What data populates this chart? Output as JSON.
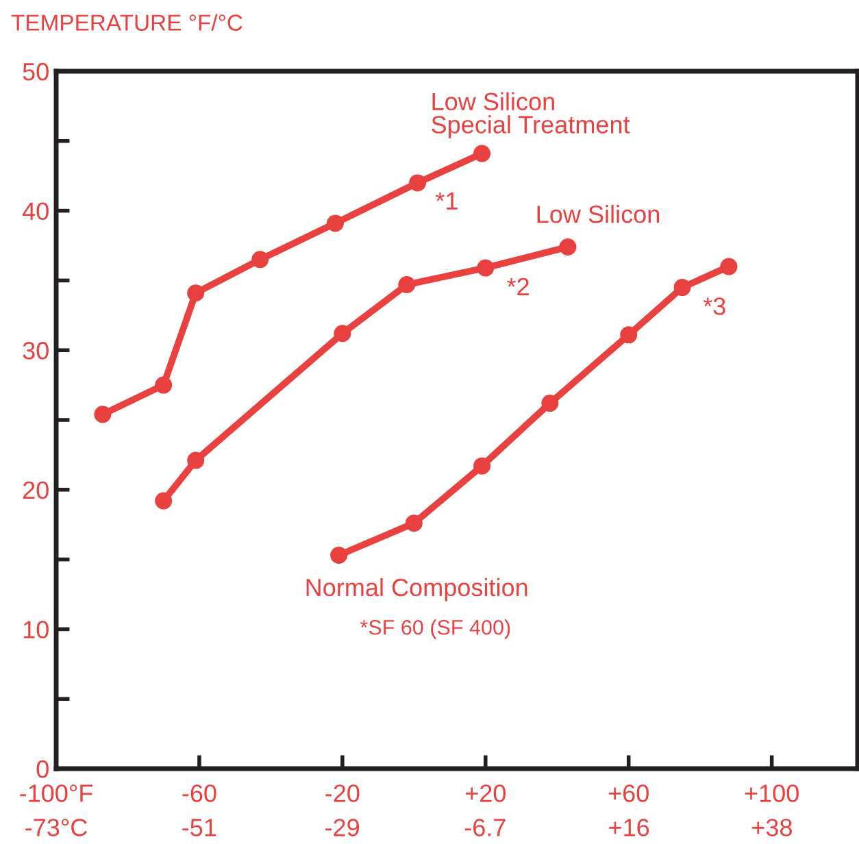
{
  "chart_data": {
    "type": "line",
    "ylabel": "TEMPERATURE °F/°C",
    "xlim": [
      -100,
      124
    ],
    "ylim": [
      0,
      50
    ],
    "xticks": [
      {
        "value": -100,
        "label": "-100°F"
      },
      -60,
      -20,
      {
        "value": 20,
        "label": "+20"
      },
      {
        "value": 60,
        "label": "+60"
      },
      {
        "value": 100,
        "label": "+100"
      }
    ],
    "x2lim": [
      -73.3,
      51.1
    ],
    "x2ticks": [
      {
        "value": -73.3,
        "label": "-73°C"
      },
      {
        "value": -51.1,
        "label": "-51"
      },
      {
        "value": -28.9,
        "label": "-29"
      },
      {
        "value": -6.7,
        "label": "-6.7"
      },
      {
        "value": 15.6,
        "label": "+16"
      },
      {
        "value": 37.8,
        "label": "+38"
      }
    ],
    "yticks": [
      0,
      {
        "value": 5,
        "label": null
      },
      10,
      {
        "value": 15,
        "label": null
      },
      20,
      {
        "value": 25,
        "label": null
      },
      30,
      {
        "value": 35,
        "label": null
      },
      40,
      {
        "value": 45,
        "label": null
      },
      50
    ],
    "marker": "circle",
    "line_style": "solid",
    "grid": false,
    "legend": false,
    "series": [
      {
        "name": "Low Silicon\nSpecial Treatment",
        "color": "#e8413f",
        "x": [
          -87,
          -70,
          -61,
          -43,
          -22,
          1,
          19
        ],
        "values": [
          25.4,
          27.5,
          34.1,
          36.5,
          39.1,
          42,
          44.1
        ]
      },
      {
        "name": "Low Silicon",
        "color": "#e8413f",
        "x": [
          -70,
          -61,
          -20,
          -2,
          20,
          43
        ],
        "values": [
          19.2,
          22.1,
          31.2,
          34.7,
          35.9,
          37.4
        ]
      },
      {
        "name": "Normal Composition",
        "color": "#e8413f",
        "x": [
          -21,
          0,
          19,
          38,
          60,
          75,
          88
        ],
        "values": [
          15.3,
          17.6,
          21.7,
          26.2,
          31.1,
          34.5,
          36
        ]
      }
    ],
    "annotations": [
      "*1",
      "*2",
      "*3",
      "*SF 60 (SF 400)"
    ]
  }
}
